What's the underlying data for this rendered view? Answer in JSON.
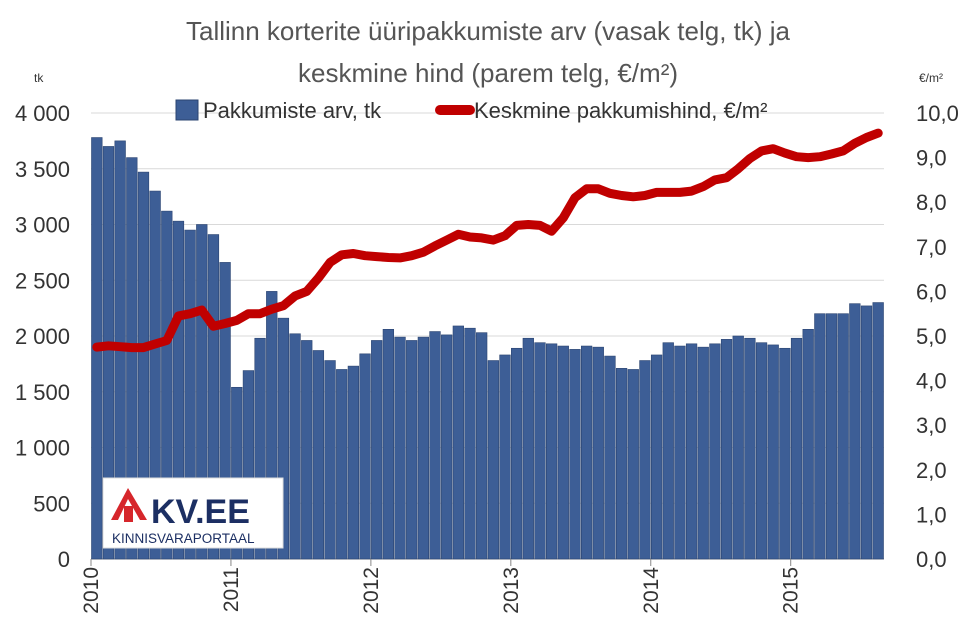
{
  "chart_data": {
    "type": "bar+line",
    "title_lines": [
      "Tallinn korterite üüripakkumiste arv (vasak telg, tk) ja",
      "keskmine hind (parem telg, €/m²)"
    ],
    "left_axis": {
      "unit": "tk",
      "ylim": [
        0,
        4000
      ],
      "ticks": [
        0,
        500,
        1000,
        1500,
        2000,
        2500,
        3000,
        3500,
        4000
      ],
      "tick_labels": [
        "0",
        "500",
        "1 000",
        "1 500",
        "2 000",
        "2 500",
        "3 000",
        "3 500",
        "4 000"
      ]
    },
    "right_axis": {
      "unit": "€/m²",
      "ylim": [
        0,
        10
      ],
      "ticks": [
        0,
        1,
        2,
        3,
        4,
        5,
        6,
        7,
        8,
        9,
        10
      ],
      "tick_labels": [
        "0,0",
        "1,0",
        "2,0",
        "3,0",
        "4,0",
        "5,0",
        "6,0",
        "7,0",
        "8,0",
        "9,0",
        "10,0"
      ]
    },
    "x_axis": {
      "year_labels": [
        "2010",
        "2011",
        "2012",
        "2013",
        "2014",
        "2015"
      ],
      "months_start": "2010-01"
    },
    "gridlines": true,
    "legend": {
      "placement": "top"
    },
    "series": [
      {
        "name": "Pakkumiste arv, tk",
        "type": "bar",
        "axis": "left",
        "color": "#3d5e96",
        "values": [
          3780,
          3700,
          3750,
          3600,
          3470,
          3300,
          3120,
          3030,
          2950,
          3000,
          2910,
          2660,
          1540,
          1690,
          1980,
          2400,
          2160,
          2020,
          1960,
          1870,
          1780,
          1700,
          1730,
          1840,
          1960,
          2060,
          1990,
          1960,
          1990,
          2040,
          2010,
          2090,
          2070,
          2030,
          1780,
          1830,
          1890,
          1980,
          1940,
          1930,
          1910,
          1880,
          1910,
          1900,
          1820,
          1710,
          1700,
          1780,
          1830,
          1940,
          1910,
          1930,
          1900,
          1930,
          1970,
          2000,
          1980,
          1940,
          1920,
          1890,
          1980,
          2060,
          2200,
          2200,
          2200,
          2290,
          2270,
          2300
        ]
      },
      {
        "name": "Keskmine pakkumishind, €/m²",
        "type": "line",
        "axis": "right",
        "color": "#c00000",
        "values": [
          4.75,
          4.78,
          4.76,
          4.74,
          4.74,
          4.82,
          4.9,
          5.45,
          5.5,
          5.58,
          5.22,
          5.28,
          5.35,
          5.5,
          5.5,
          5.6,
          5.68,
          5.9,
          6.0,
          6.3,
          6.65,
          6.82,
          6.85,
          6.8,
          6.78,
          6.76,
          6.75,
          6.8,
          6.88,
          7.02,
          7.15,
          7.28,
          7.22,
          7.2,
          7.15,
          7.25,
          7.48,
          7.5,
          7.48,
          7.35,
          7.65,
          8.1,
          8.3,
          8.3,
          8.2,
          8.15,
          8.12,
          8.15,
          8.22,
          8.22,
          8.22,
          8.25,
          8.35,
          8.5,
          8.55,
          8.75,
          8.98,
          9.15,
          9.2,
          9.1,
          9.02,
          9.0,
          9.02,
          9.08,
          9.15,
          9.32,
          9.45,
          9.55
        ]
      }
    ],
    "logo": {
      "name": "KV.EE",
      "tagline": "KINNISVARAPORTAAL"
    }
  }
}
